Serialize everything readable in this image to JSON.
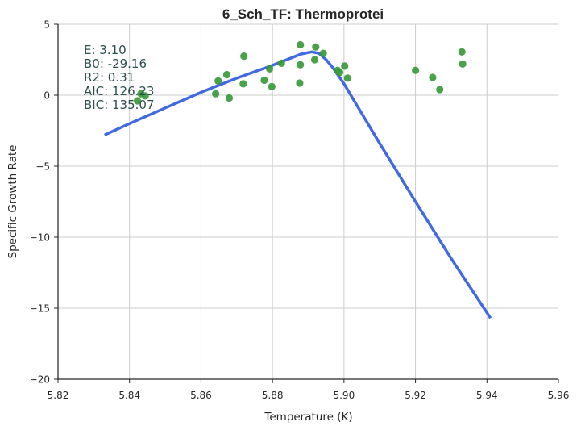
{
  "chart_data": {
    "type": "scatter",
    "title": "6_Sch_TF: Thermoprotei",
    "xlabel": "Temperature (K)",
    "ylabel": "Specific Growth Rate",
    "xlim": [
      5.82,
      5.96
    ],
    "ylim": [
      -20,
      5
    ],
    "x_ticks": [
      5.82,
      5.84,
      5.86,
      5.88,
      5.9,
      5.92,
      5.94,
      5.96
    ],
    "x_tick_labels": [
      "5.82",
      "5.84",
      "5.86",
      "5.88",
      "5.90",
      "5.92",
      "5.94",
      "5.96"
    ],
    "y_ticks": [
      5,
      0,
      -5,
      -10,
      -15,
      -20
    ],
    "y_tick_labels": [
      "5",
      "0",
      "−5",
      "−10",
      "−15",
      "−20"
    ],
    "grid": true,
    "annotations": [
      "E:  3.10",
      "B0:  -29.16",
      "R2:  0.31",
      "AIC: 126.23",
      "BIC: 135.07"
    ],
    "series": [
      {
        "kind": "scatter",
        "color": "#3a9a3a",
        "points": [
          [
            5.8422,
            -0.4
          ],
          [
            5.8432,
            0.1
          ],
          [
            5.8444,
            -0.05
          ],
          [
            5.8641,
            0.1
          ],
          [
            5.8648,
            1.0
          ],
          [
            5.8672,
            1.45
          ],
          [
            5.8679,
            -0.2
          ],
          [
            5.8718,
            0.8
          ],
          [
            5.872,
            2.75
          ],
          [
            5.8777,
            1.05
          ],
          [
            5.8792,
            1.85
          ],
          [
            5.8798,
            0.6
          ],
          [
            5.8825,
            2.25
          ],
          [
            5.8876,
            0.85
          ],
          [
            5.8878,
            3.55
          ],
          [
            5.8878,
            2.15
          ],
          [
            5.8918,
            2.5
          ],
          [
            5.8921,
            3.4
          ],
          [
            5.8942,
            2.95
          ],
          [
            5.8982,
            1.75
          ],
          [
            5.8988,
            1.6
          ],
          [
            5.9002,
            2.05
          ],
          [
            5.901,
            1.2
          ],
          [
            5.92,
            1.75
          ],
          [
            5.9248,
            1.25
          ],
          [
            5.9268,
            0.4
          ],
          [
            5.933,
            3.05
          ],
          [
            5.9332,
            2.2
          ]
        ]
      },
      {
        "kind": "line",
        "color": "#4169e1",
        "points": [
          [
            5.833,
            -2.8
          ],
          [
            5.84,
            -2.0
          ],
          [
            5.85,
            -0.9
          ],
          [
            5.86,
            0.2
          ],
          [
            5.87,
            1.2
          ],
          [
            5.88,
            2.1
          ],
          [
            5.885,
            2.6
          ],
          [
            5.888,
            2.9
          ],
          [
            5.891,
            3.05
          ],
          [
            5.893,
            2.95
          ],
          [
            5.895,
            2.5
          ],
          [
            5.897,
            1.9
          ],
          [
            5.9,
            0.8
          ],
          [
            5.91,
            -3.4
          ],
          [
            5.92,
            -7.5
          ],
          [
            5.93,
            -11.5
          ],
          [
            5.941,
            -15.7
          ]
        ]
      }
    ]
  }
}
